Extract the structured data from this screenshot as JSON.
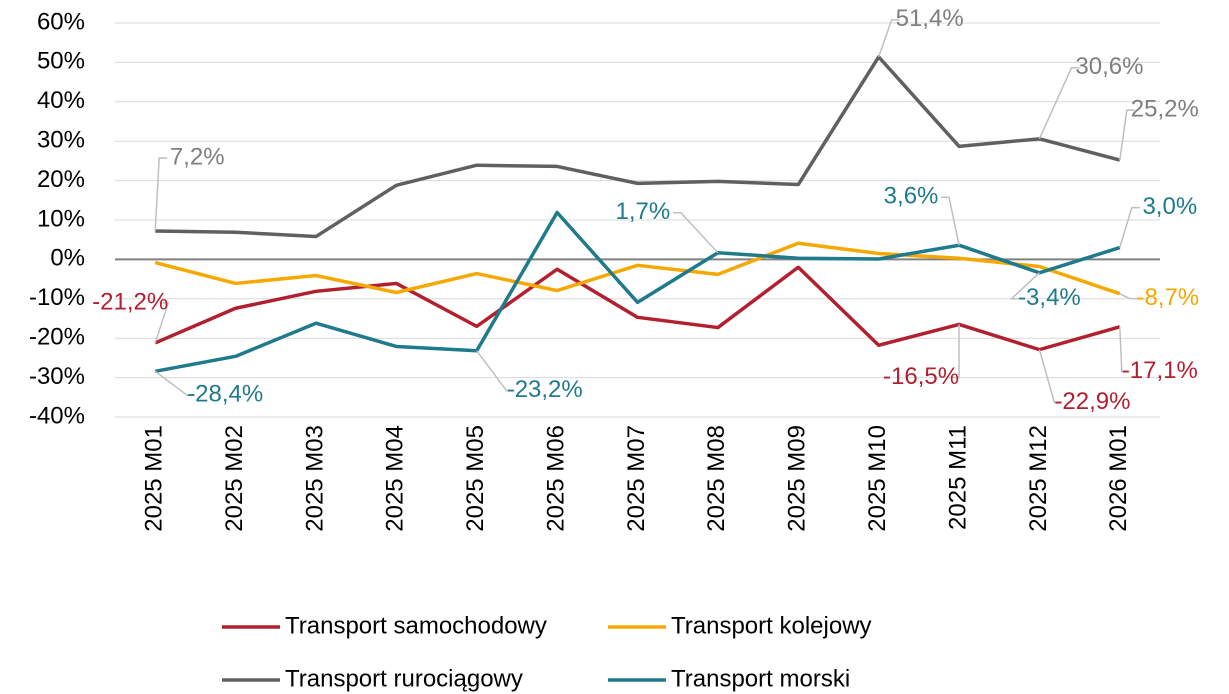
{
  "chart_data": {
    "type": "line",
    "categories": [
      "2025 M01",
      "2025 M02",
      "2025 M03",
      "2025 M04",
      "2025 M05",
      "2025 M06",
      "2025 M07",
      "2025 M08",
      "2025 M09",
      "2025 M10",
      "2025 M11",
      "2025 M12",
      "2026 M01"
    ],
    "series": [
      {
        "name": "Transport samochodowy",
        "color": "#b22030",
        "values": [
          -21.2,
          -12.4,
          -8.1,
          -6.1,
          -17.0,
          -2.5,
          -14.7,
          -17.3,
          -2.0,
          -21.8,
          -16.5,
          -22.9,
          -17.1
        ],
        "value_labels": [
          "-21,2%",
          null,
          null,
          null,
          null,
          null,
          null,
          null,
          null,
          null,
          "-16,5%",
          "-22,9%",
          "-17,1%"
        ]
      },
      {
        "name": "Transport kolejowy",
        "color": "#f5a800",
        "values": [
          -0.8,
          -6.1,
          -4.1,
          -8.4,
          -3.6,
          -7.9,
          -1.5,
          -3.8,
          4.1,
          1.5,
          0.3,
          -1.8,
          -8.7
        ],
        "value_labels": [
          null,
          null,
          null,
          null,
          null,
          null,
          null,
          null,
          null,
          null,
          null,
          null,
          "-8,7%"
        ]
      },
      {
        "name": "Transport rurociągowy",
        "color": "#606060",
        "values": [
          7.2,
          6.9,
          5.8,
          18.8,
          23.9,
          23.6,
          19.3,
          19.8,
          19.0,
          51.4,
          28.7,
          30.6,
          25.2
        ],
        "value_labels": [
          "7,2%",
          null,
          null,
          null,
          null,
          null,
          null,
          null,
          null,
          "51,4%",
          null,
          "30,6%",
          "25,2%"
        ]
      },
      {
        "name": "Transport morski",
        "color": "#1f7a8c",
        "values": [
          -28.4,
          -24.6,
          -16.2,
          -22.1,
          -23.2,
          11.9,
          -10.9,
          1.7,
          0.3,
          0.1,
          3.6,
          -3.4,
          3.0
        ],
        "value_labels": [
          "-28,4%",
          null,
          null,
          null,
          "-23,2%",
          null,
          null,
          "1,7%",
          null,
          null,
          "3,6%",
          "-3,4%",
          "3,0%"
        ]
      }
    ],
    "ylim": [
      -40,
      60
    ],
    "yticks": [
      {
        "value": -40,
        "label": "-40%"
      },
      {
        "value": -30,
        "label": "-30%"
      },
      {
        "value": -20,
        "label": "-20%"
      },
      {
        "value": -10,
        "label": "-10%"
      },
      {
        "value": 0,
        "label": "0%"
      },
      {
        "value": 10,
        "label": "10%"
      },
      {
        "value": 20,
        "label": "20%"
      },
      {
        "value": 30,
        "label": "30%"
      },
      {
        "value": 40,
        "label": "40%"
      },
      {
        "value": 50,
        "label": "50%"
      },
      {
        "value": 60,
        "label": "60%"
      }
    ],
    "grid": true
  }
}
